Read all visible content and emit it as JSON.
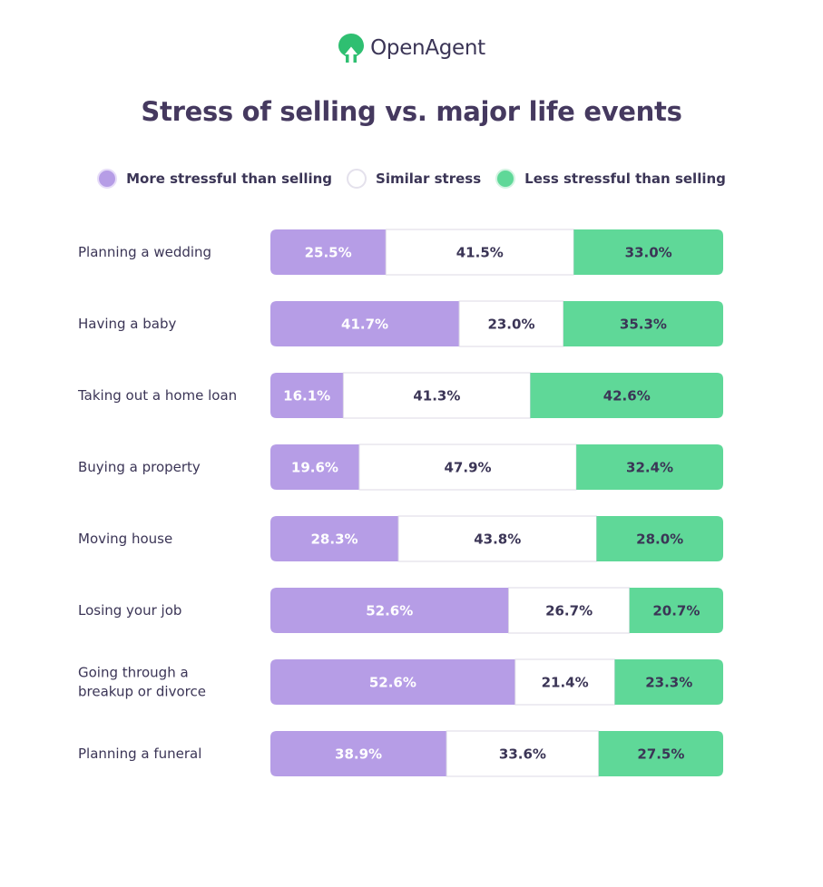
{
  "brand": {
    "name": "OpenAgent"
  },
  "colors": {
    "more": "#b69de6",
    "similar": "#ffffff",
    "less": "#5fd898",
    "text": "#3b3556",
    "border": "#dcd8e6"
  },
  "chart_data": {
    "type": "bar",
    "stacked": true,
    "orientation": "horizontal",
    "normalized": true,
    "title": "Stress of selling vs. major life events",
    "legend": "top-center",
    "grid": false,
    "categories": [
      "Planning a wedding",
      "Having a baby",
      "Taking out a home loan",
      "Buying a property",
      "Moving house",
      "Losing your job",
      "Going through a breakup or divorce",
      "Planning a funeral"
    ],
    "series": [
      {
        "name": "More stressful than selling",
        "values": [
          25.5,
          41.7,
          16.1,
          19.6,
          28.3,
          52.6,
          52.6,
          38.9
        ],
        "color": "#b69de6"
      },
      {
        "name": "Similar stress",
        "values": [
          41.5,
          23.0,
          41.3,
          47.9,
          43.8,
          26.7,
          21.4,
          33.6
        ],
        "color": "#ffffff"
      },
      {
        "name": "Less stressful than selling",
        "values": [
          33.0,
          35.3,
          42.6,
          32.4,
          28.0,
          20.7,
          23.3,
          27.5
        ],
        "color": "#5fd898"
      }
    ],
    "category_lines": [
      [
        "Planning a wedding"
      ],
      [
        "Having a baby"
      ],
      [
        "Taking out a home loan"
      ],
      [
        "Buying a property"
      ],
      [
        "Moving house"
      ],
      [
        "Losing your job"
      ],
      [
        "Going through a",
        "breakup or divorce"
      ],
      [
        "Planning a funeral"
      ]
    ],
    "value_labels": [
      [
        "25.5%",
        "41.5%",
        "33.0%"
      ],
      [
        "41.7%",
        "23.0%",
        "35.3%"
      ],
      [
        "16.1%",
        "41.3%",
        "42.6%"
      ],
      [
        "19.6%",
        "47.9%",
        "32.4%"
      ],
      [
        "28.3%",
        "43.8%",
        "28.0%"
      ],
      [
        "52.6%",
        "26.7%",
        "20.7%"
      ],
      [
        "52.6%",
        "21.4%",
        "23.3%"
      ],
      [
        "38.9%",
        "33.6%",
        "27.5%"
      ]
    ]
  }
}
